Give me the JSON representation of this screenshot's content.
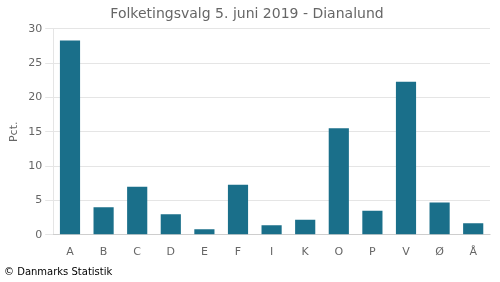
{
  "chart_data": {
    "type": "bar",
    "title": "Folketingsvalg 5. juni 2019 - Dianalund",
    "ylabel": "Pct.",
    "footer": "© Danmarks Statistik",
    "categories": [
      "A",
      "B",
      "C",
      "D",
      "E",
      "F",
      "I",
      "K",
      "O",
      "P",
      "V",
      "Ø",
      "Å"
    ],
    "values": [
      28.3,
      4.0,
      7.0,
      3.0,
      0.8,
      7.3,
      1.4,
      2.2,
      15.5,
      3.5,
      22.3,
      4.7,
      1.7
    ],
    "color": "#1a6f8a",
    "ylim": [
      0,
      30
    ],
    "yticks": [
      0,
      5,
      10,
      15,
      20,
      25,
      30
    ],
    "grid": true
  }
}
